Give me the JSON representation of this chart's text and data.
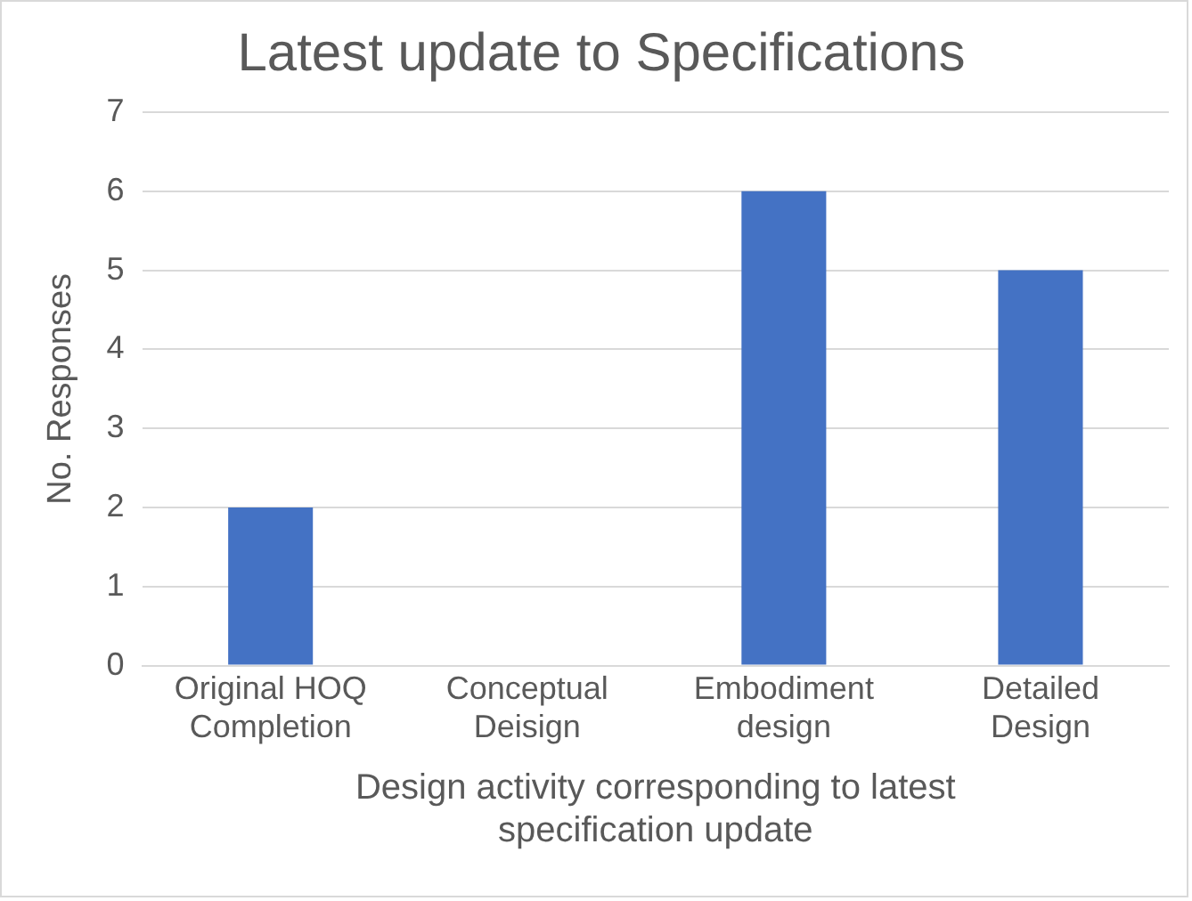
{
  "chart_data": {
    "type": "bar",
    "title": "Latest update to Specifications",
    "xlabel": "Design activity corresponding to latest specification update",
    "ylabel": "No. Responses",
    "categories": [
      "Original HOQ Completion",
      "Conceptual Deisign",
      "Embodiment design",
      "Detailed Design"
    ],
    "values": [
      2,
      0,
      6,
      5
    ],
    "color": "#4472c4",
    "ylim": [
      0,
      7
    ],
    "yticks": [
      0,
      1,
      2,
      3,
      4,
      5,
      6,
      7
    ],
    "grid": "y",
    "legend": false
  }
}
